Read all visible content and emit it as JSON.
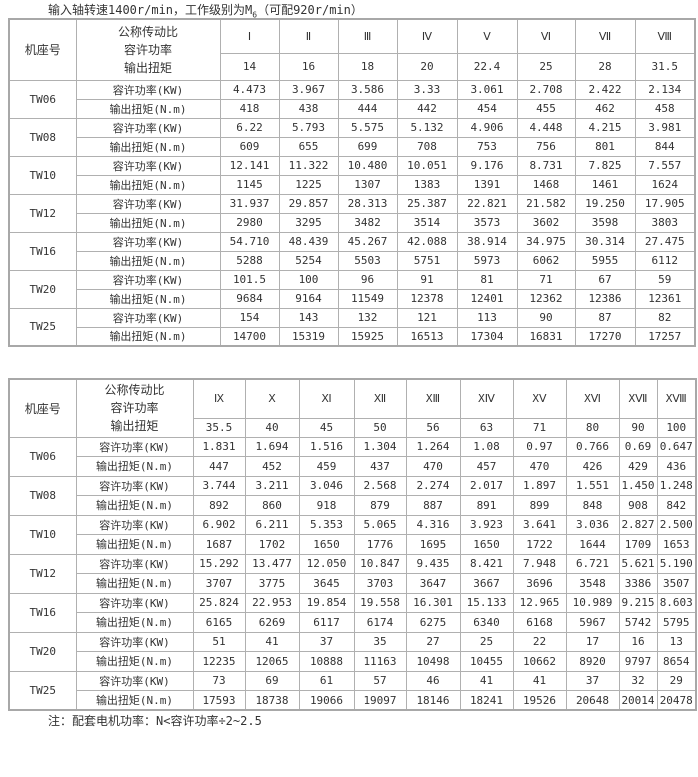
{
  "title": {
    "text": "输入轴转速1400r/min，工作级别为M",
    "sub": "6",
    "suffix": "（可配920r/min）"
  },
  "labels": {
    "seat": "机座号",
    "header_lines": [
      "公称传动比",
      "容许功率",
      "输出扭矩"
    ],
    "power": "容许功率(KW)",
    "torque": "输出扭矩(N.m)"
  },
  "tables": [
    {
      "grades": [
        "Ⅰ",
        "Ⅱ",
        "Ⅲ",
        "Ⅳ",
        "Ⅴ",
        "Ⅵ",
        "Ⅶ",
        "Ⅷ"
      ],
      "ratios": [
        "14",
        "16",
        "18",
        "20",
        "22.4",
        "25",
        "28",
        "31.5"
      ],
      "rows": [
        {
          "model": "TW06",
          "power": [
            "4.473",
            "3.967",
            "3.586",
            "3.33",
            "3.061",
            "2.708",
            "2.422",
            "2.134"
          ],
          "torque": [
            "418",
            "438",
            "444",
            "442",
            "454",
            "455",
            "462",
            "458"
          ]
        },
        {
          "model": "TW08",
          "power": [
            "6.22",
            "5.793",
            "5.575",
            "5.132",
            "4.906",
            "4.448",
            "4.215",
            "3.981"
          ],
          "torque": [
            "609",
            "655",
            "699",
            "708",
            "753",
            "756",
            "801",
            "844"
          ]
        },
        {
          "model": "TW10",
          "power": [
            "12.141",
            "11.322",
            "10.480",
            "10.051",
            "9.176",
            "8.731",
            "7.825",
            "7.557"
          ],
          "torque": [
            "1145",
            "1225",
            "1307",
            "1383",
            "1391",
            "1468",
            "1461",
            "1624"
          ]
        },
        {
          "model": "TW12",
          "power": [
            "31.937",
            "29.857",
            "28.313",
            "25.387",
            "22.821",
            "21.582",
            "19.250",
            "17.905"
          ],
          "torque": [
            "2980",
            "3295",
            "3482",
            "3514",
            "3573",
            "3602",
            "3598",
            "3803"
          ]
        },
        {
          "model": "TW16",
          "power": [
            "54.710",
            "48.439",
            "45.267",
            "42.088",
            "38.914",
            "34.975",
            "30.314",
            "27.475"
          ],
          "torque": [
            "5288",
            "5254",
            "5503",
            "5751",
            "5973",
            "6062",
            "5955",
            "6112"
          ]
        },
        {
          "model": "TW20",
          "power": [
            "101.5",
            "100",
            "96",
            "91",
            "81",
            "71",
            "67",
            "59"
          ],
          "torque": [
            "9684",
            "9164",
            "11549",
            "12378",
            "12401",
            "12362",
            "12386",
            "12361"
          ]
        },
        {
          "model": "TW25",
          "power": [
            "154",
            "143",
            "132",
            "121",
            "113",
            "90",
            "87",
            "82"
          ],
          "torque": [
            "14700",
            "15319",
            "15925",
            "16513",
            "17304",
            "16831",
            "17270",
            "17257"
          ]
        }
      ]
    },
    {
      "grades": [
        "Ⅸ",
        "Ⅹ",
        "Ⅺ",
        "Ⅻ",
        "XⅢ",
        "XⅣ",
        "XⅤ",
        "XⅥ",
        "XⅦ",
        "XⅧ"
      ],
      "ratios": [
        "35.5",
        "40",
        "45",
        "50",
        "56",
        "63",
        "71",
        "80",
        "90",
        "100"
      ],
      "rows": [
        {
          "model": "TW06",
          "power": [
            "1.831",
            "1.694",
            "1.516",
            "1.304",
            "1.264",
            "1.08",
            "0.97",
            "0.766",
            "0.69",
            "0.647"
          ],
          "torque": [
            "447",
            "452",
            "459",
            "437",
            "470",
            "457",
            "470",
            "426",
            "429",
            "436"
          ]
        },
        {
          "model": "TW08",
          "power": [
            "3.744",
            "3.211",
            "3.046",
            "2.568",
            "2.274",
            "2.017",
            "1.897",
            "1.551",
            "1.450",
            "1.248"
          ],
          "torque": [
            "892",
            "860",
            "918",
            "879",
            "887",
            "891",
            "899",
            "848",
            "908",
            "842"
          ]
        },
        {
          "model": "TW10",
          "power": [
            "6.902",
            "6.211",
            "5.353",
            "5.065",
            "4.316",
            "3.923",
            "3.641",
            "3.036",
            "2.827",
            "2.500"
          ],
          "torque": [
            "1687",
            "1702",
            "1650",
            "1776",
            "1695",
            "1650",
            "1722",
            "1644",
            "1709",
            "1653"
          ]
        },
        {
          "model": "TW12",
          "power": [
            "15.292",
            "13.477",
            "12.050",
            "10.847",
            "9.435",
            "8.421",
            "7.948",
            "6.721",
            "5.621",
            "5.190"
          ],
          "torque": [
            "3707",
            "3775",
            "3645",
            "3703",
            "3647",
            "3667",
            "3696",
            "3548",
            "3386",
            "3507"
          ]
        },
        {
          "model": "TW16",
          "power": [
            "25.824",
            "22.953",
            "19.854",
            "19.558",
            "16.301",
            "15.133",
            "12.965",
            "10.989",
            "9.215",
            "8.603"
          ],
          "torque": [
            "6165",
            "6269",
            "6117",
            "6174",
            "6275",
            "6340",
            "6168",
            "5967",
            "5742",
            "5795"
          ]
        },
        {
          "model": "TW20",
          "power": [
            "51",
            "41",
            "37",
            "35",
            "27",
            "25",
            "22",
            "17",
            "16",
            "13"
          ],
          "torque": [
            "12235",
            "12065",
            "10888",
            "11163",
            "10498",
            "10455",
            "10662",
            "8920",
            "9797",
            "8654"
          ]
        },
        {
          "model": "TW25",
          "power": [
            "73",
            "69",
            "61",
            "57",
            "46",
            "41",
            "41",
            "37",
            "32",
            "29"
          ],
          "torque": [
            "17593",
            "18738",
            "19066",
            "19097",
            "18146",
            "18241",
            "19526",
            "20648",
            "20014",
            "20478"
          ]
        }
      ]
    }
  ],
  "note": {
    "text": "注：配套电机功率：N",
    "suffix": "<容许功率÷2~2.5"
  }
}
